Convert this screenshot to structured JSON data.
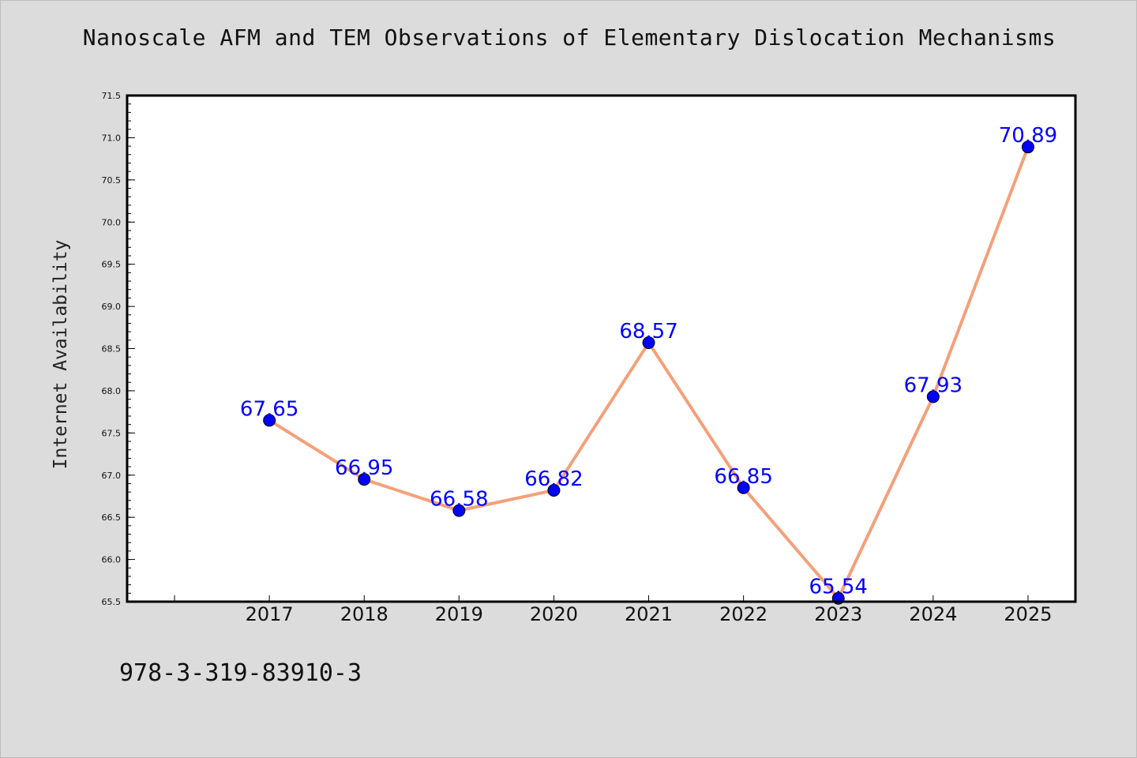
{
  "title": "Nanoscale AFM and TEM Observations of Elementary Dislocation Mechanisms",
  "footer_code": "978-3-319-83910-3",
  "colors": {
    "background": "#dcdcdc",
    "plot_bg": "#ffffff",
    "line": "#f4a07a",
    "marker": "#0000ff",
    "label": "#0000ff"
  },
  "chart_data": {
    "type": "line",
    "title": "Nanoscale AFM and TEM Observations of Elementary Dislocation Mechanisms",
    "xlabel": "",
    "ylabel": "Internet Availability",
    "categories": [
      "2017",
      "2018",
      "2019",
      "2020",
      "2021",
      "2022",
      "2023",
      "2024",
      "2025"
    ],
    "series": [
      {
        "values": [
          67.65,
          66.95,
          66.58,
          66.82,
          68.57,
          66.85,
          65.54,
          67.93,
          70.89
        ],
        "data_labels": [
          "67.65",
          "66.95",
          "66.58",
          "66.82",
          "68.57",
          "66.85",
          "65.54",
          "67.93",
          "70.89"
        ]
      }
    ],
    "ylim": [
      65.5,
      71.5
    ],
    "yticks": [
      "65.5",
      "66.0",
      "66.5",
      "67.0",
      "67.5",
      "68.0",
      "68.5",
      "69.0",
      "69.5",
      "70.0",
      "70.5",
      "71.0",
      "71.5"
    ],
    "xlim": [
      "2015.5",
      "2025.5"
    ],
    "grid": false,
    "legend": "none"
  }
}
